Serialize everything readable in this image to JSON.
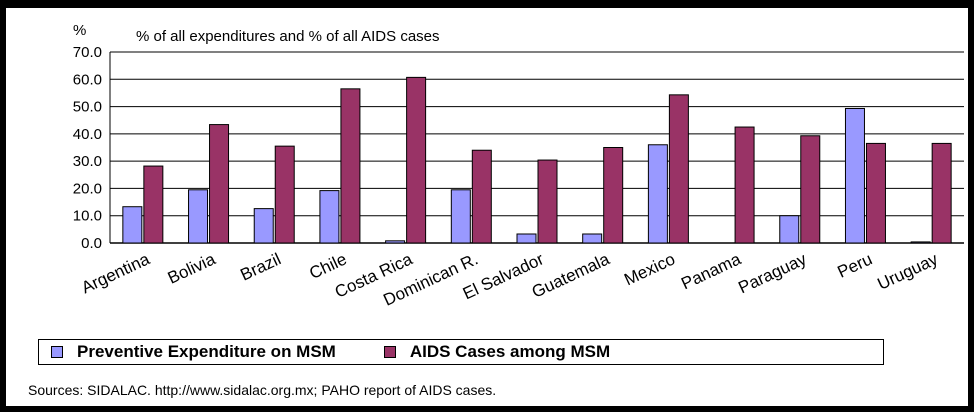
{
  "chart_data": {
    "type": "bar",
    "title": "% of all expenditures and % of all AIDS cases",
    "ylabel": "%",
    "xlabel": "",
    "ylim": [
      0,
      70
    ],
    "yticks": [
      "0.0",
      "10.0",
      "20.0",
      "30.0",
      "40.0",
      "50.0",
      "60.0",
      "70.0"
    ],
    "grid": true,
    "legend_position": "bottom",
    "categories": [
      "Argentina",
      "Bolivia",
      "Brazil",
      "Chile",
      "Costa Rica",
      "Dominican R.",
      "El Salvador",
      "Guatemala",
      "Mexico",
      "Panama",
      "Paraguay",
      "Peru",
      "Uruguay"
    ],
    "series": [
      {
        "name": "Preventive Expenditure on MSM",
        "color": "#9999ff",
        "values": [
          13.3,
          19.5,
          12.6,
          19.2,
          0.8,
          19.5,
          3.3,
          3.3,
          36.0,
          0.0,
          10.0,
          49.3,
          0.4
        ]
      },
      {
        "name": "AIDS Cases among MSM",
        "color": "#993366",
        "values": [
          28.2,
          43.4,
          35.5,
          56.5,
          60.7,
          34.0,
          30.4,
          35.0,
          54.3,
          42.5,
          39.3,
          36.5,
          36.5
        ]
      }
    ]
  },
  "sources": "Sources: SIDALAC. http://www.sidalac.org.mx; PAHO report of AIDS cases."
}
